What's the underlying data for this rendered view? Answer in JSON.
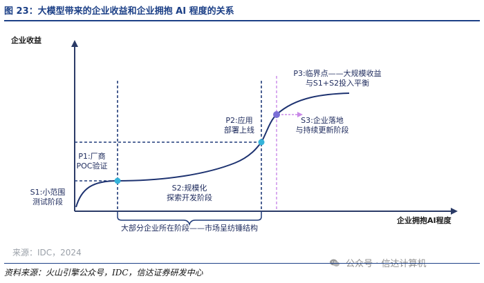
{
  "figure": {
    "title": "图 23：大模型带来的企业收益和企业拥抱 AI 程度的关系"
  },
  "diagram": {
    "y_axis_label": "企业收益",
    "x_axis_label": "企业拥抱AI程度",
    "p1_label": [
      "P1:厂商",
      "POC验证"
    ],
    "p2_label": [
      "P2:应用",
      "部署上线"
    ],
    "p3_label": [
      "P3:临界点——大规模收益",
      "与S1+S2投入平衡"
    ],
    "s1_label": [
      "S1:小范围",
      "测试阶段"
    ],
    "s2_label": [
      "S2:规模化",
      "探索开发阶段"
    ],
    "s3_label": [
      "S3:企业落地",
      "与持续更新阶段"
    ],
    "brace_label": "大部分企业所在阶段——市场呈纺锤结构",
    "colors": {
      "axis": "#2a3a66",
      "curve": "#1d3270",
      "guide": "#1f3a78",
      "p1_dot": "#35b3d9",
      "p2_dot": "#35b3d9",
      "p3_dot": "#7b6fd6",
      "p3_dash": "#c989e8",
      "label": "#1d2a5c"
    }
  },
  "source_note": "来源：IDC，2024",
  "footer": "资料来源：火山引擎公众号，IDC，信达证券研发中心",
  "watermark": {
    "icon": "wechat-icon",
    "text": "公众号 · 信达计算机"
  }
}
